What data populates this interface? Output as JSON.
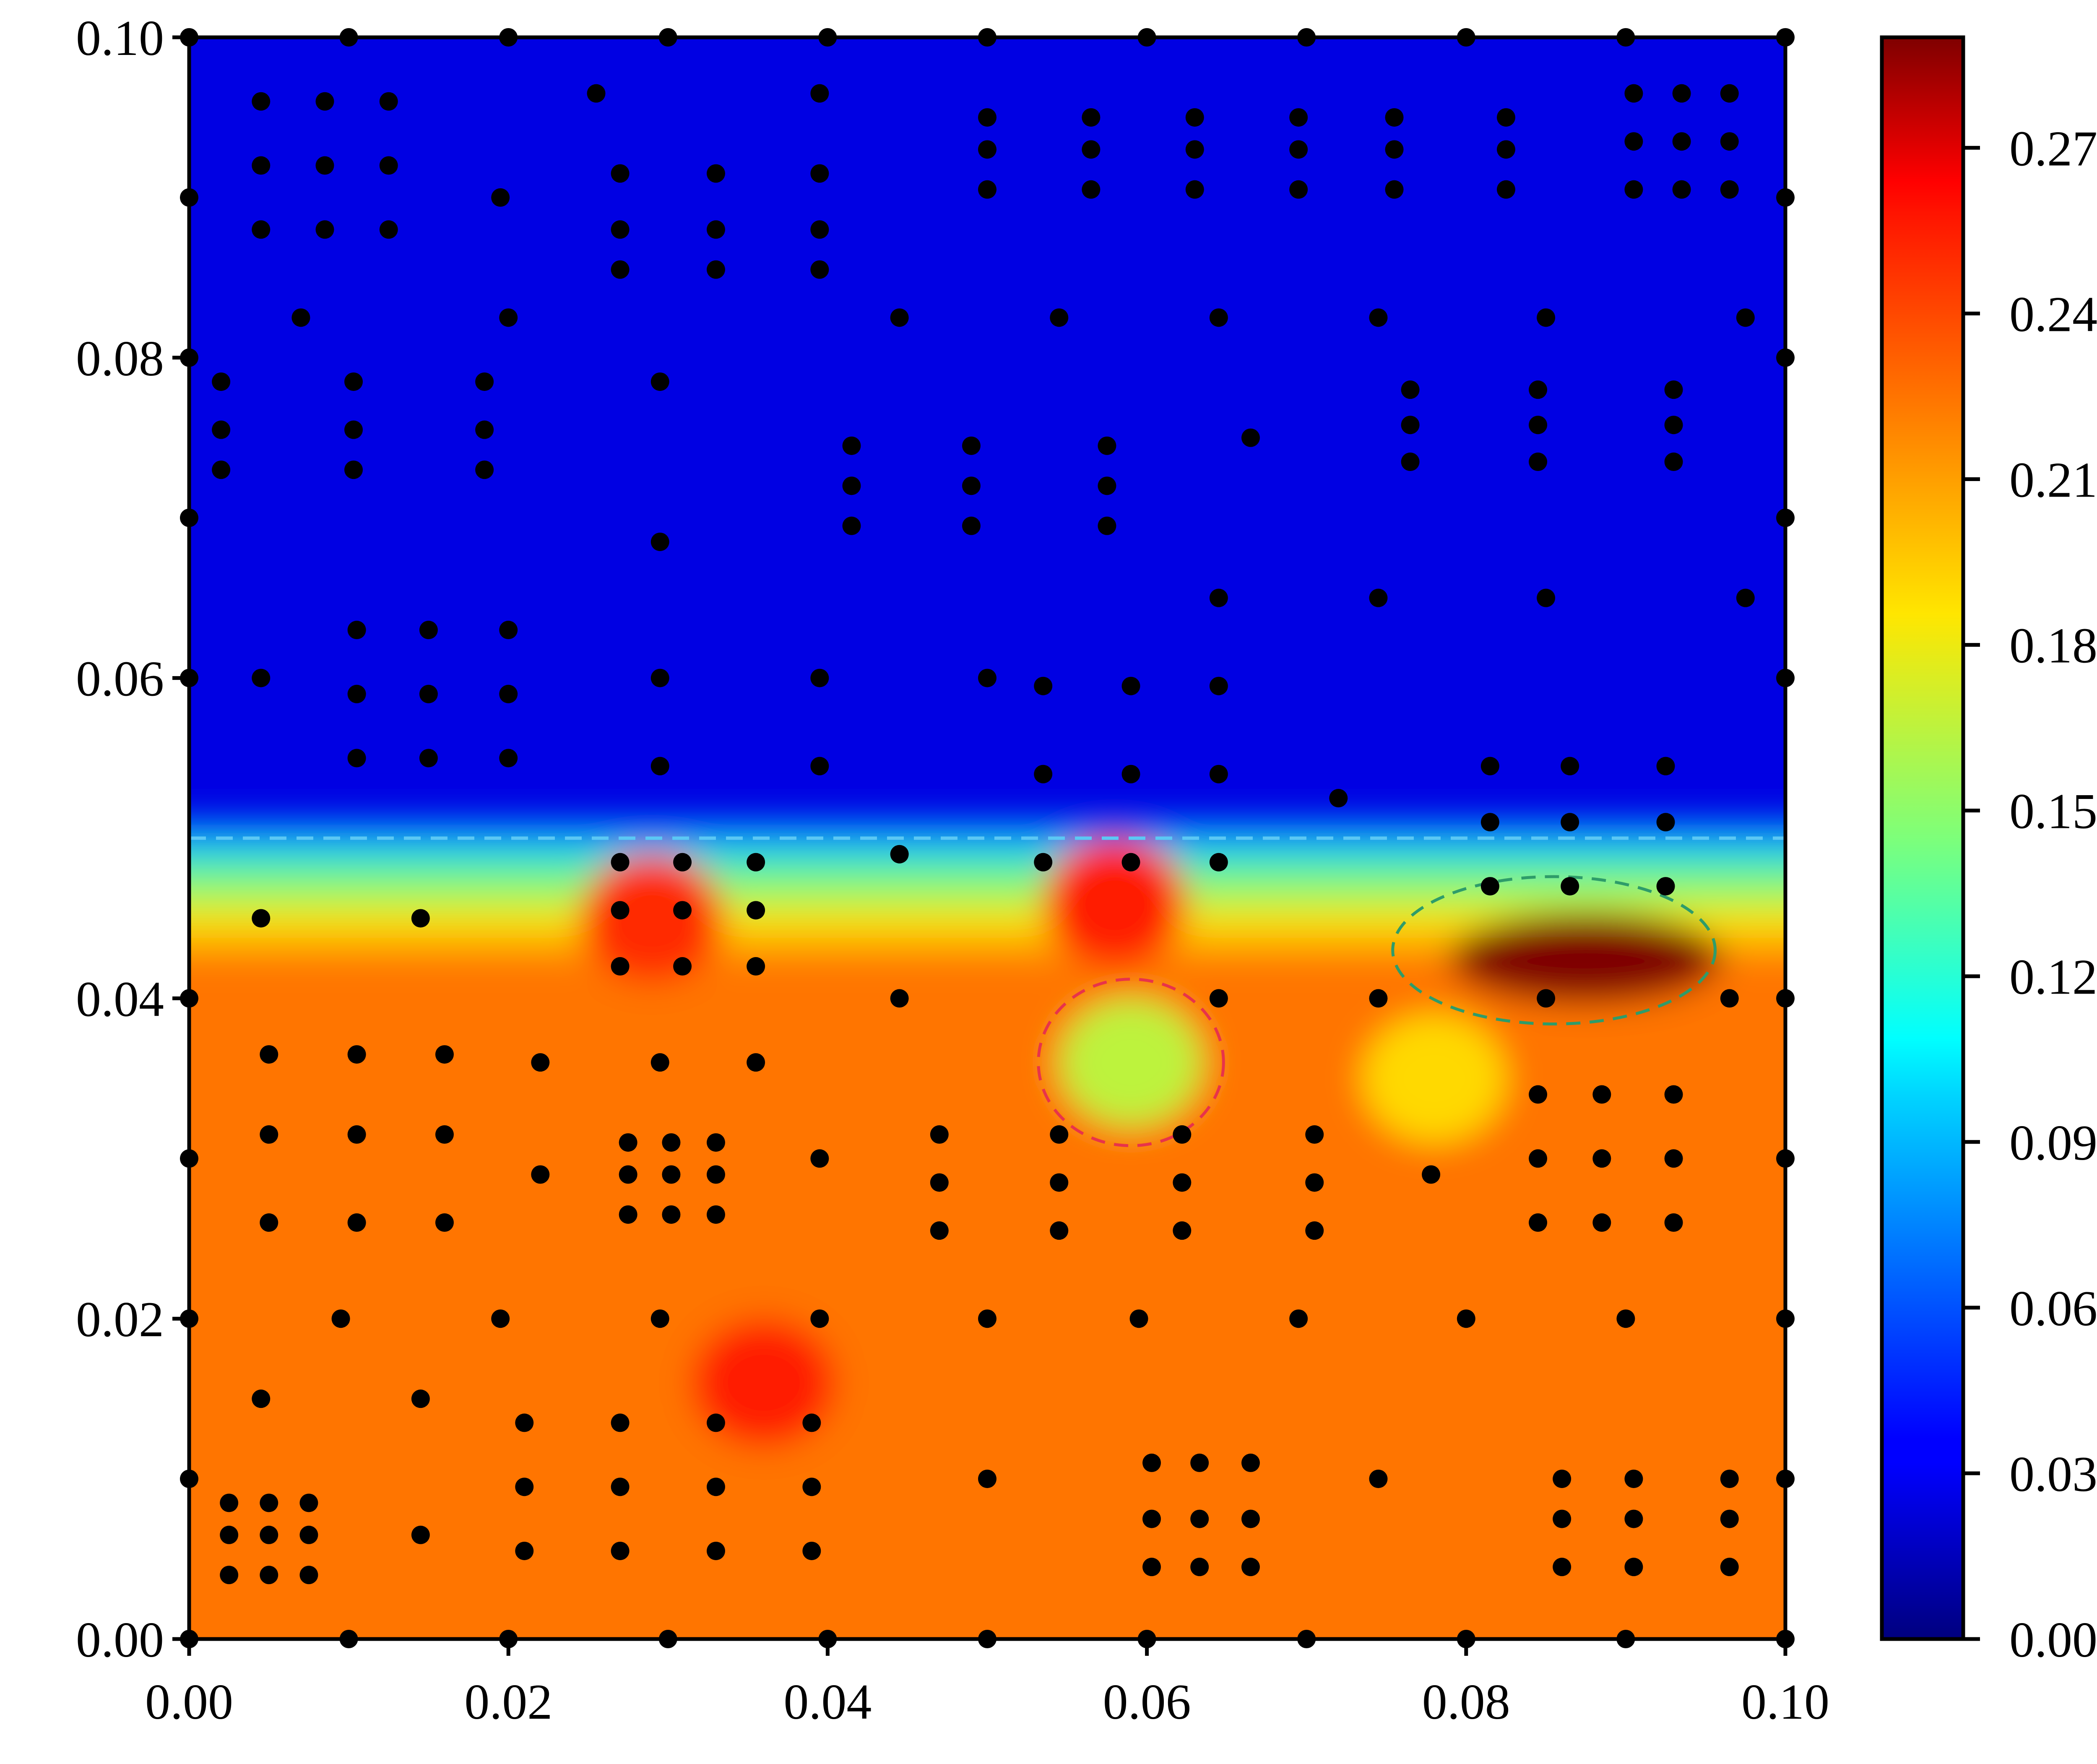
{
  "chart_data": {
    "type": "heatmap",
    "title": "",
    "xlabel": "",
    "ylabel": "",
    "xlim": [
      0.0,
      0.1
    ],
    "ylim": [
      0.0,
      0.1
    ],
    "x_ticks": [
      "0.00",
      "0.02",
      "0.04",
      "0.06",
      "0.08",
      "0.10"
    ],
    "y_ticks": [
      "0.00",
      "0.02",
      "0.04",
      "0.06",
      "0.08",
      "0.10"
    ],
    "colormap": "jet",
    "colorbar": {
      "range": [
        0.0,
        0.29
      ],
      "ticks": [
        "0.00",
        "0.03",
        "0.06",
        "0.09",
        "0.12",
        "0.15",
        "0.18",
        "0.21",
        "0.24",
        "0.27"
      ]
    },
    "interface_line": {
      "y": 0.05,
      "style": "dashed",
      "color": "#5bc8f5"
    },
    "annotations": [
      {
        "shape": "dashed-ellipse",
        "color": "#e8334a",
        "cx": 0.059,
        "cy": 0.036,
        "rx": 0.0058,
        "ry": 0.0052
      },
      {
        "shape": "dashed-ellipse",
        "color": "#2e9c6a",
        "cx": 0.0855,
        "cy": 0.043,
        "rx": 0.0101,
        "ry": 0.0046
      }
    ],
    "field_features": [
      {
        "kind": "upper-region",
        "y_from": 0.05,
        "y_to": 0.1,
        "value": 0.025
      },
      {
        "kind": "lower-region",
        "y_from": 0.0,
        "y_to": 0.042,
        "value": 0.225
      },
      {
        "kind": "hotspot",
        "x": 0.0875,
        "y": 0.0425,
        "value": 0.29
      },
      {
        "kind": "hotspot",
        "x": 0.058,
        "y": 0.046,
        "value": 0.255
      },
      {
        "kind": "hotspot",
        "x": 0.029,
        "y": 0.045,
        "value": 0.25
      },
      {
        "kind": "hotspot",
        "x": 0.036,
        "y": 0.016,
        "value": 0.255
      },
      {
        "kind": "coolspot",
        "x": 0.059,
        "y": 0.036,
        "value": 0.165
      },
      {
        "kind": "coolspot",
        "x": 0.078,
        "y": 0.035,
        "value": 0.19
      }
    ],
    "sample_points": [
      [
        0,
        0
      ],
      [
        0.01,
        0
      ],
      [
        0.02,
        0
      ],
      [
        0.03,
        0
      ],
      [
        0.04,
        0
      ],
      [
        0.05,
        0
      ],
      [
        0.06,
        0
      ],
      [
        0.07,
        0
      ],
      [
        0.08,
        0
      ],
      [
        0.09,
        0
      ],
      [
        0.1,
        0
      ],
      [
        0,
        0.1
      ],
      [
        0.01,
        0.1
      ],
      [
        0.02,
        0.1
      ],
      [
        0.03,
        0.1
      ],
      [
        0.04,
        0.1
      ],
      [
        0.05,
        0.1
      ],
      [
        0.06,
        0.1
      ],
      [
        0.07,
        0.1
      ],
      [
        0.08,
        0.1
      ],
      [
        0.09,
        0.1
      ],
      [
        0.1,
        0.1
      ],
      [
        0,
        0.01
      ],
      [
        0,
        0.02
      ],
      [
        0,
        0.03
      ],
      [
        0,
        0.04
      ],
      [
        0,
        0.06
      ],
      [
        0,
        0.07
      ],
      [
        0,
        0.08
      ],
      [
        0,
        0.09
      ],
      [
        0.1,
        0.01
      ],
      [
        0.1,
        0.02
      ],
      [
        0.1,
        0.03
      ],
      [
        0.1,
        0.04
      ],
      [
        0.1,
        0.06
      ],
      [
        0.1,
        0.07
      ],
      [
        0.1,
        0.08
      ],
      [
        0.1,
        0.09
      ],
      [
        0.0045,
        0.096
      ],
      [
        0.0085,
        0.096
      ],
      [
        0.0125,
        0.096
      ],
      [
        0.0045,
        0.092
      ],
      [
        0.0085,
        0.092
      ],
      [
        0.0125,
        0.092
      ],
      [
        0.0045,
        0.088
      ],
      [
        0.0085,
        0.088
      ],
      [
        0.0125,
        0.088
      ],
      [
        0.0255,
        0.0965
      ],
      [
        0.0395,
        0.0965
      ],
      [
        0.0195,
        0.09
      ],
      [
        0.007,
        0.0825
      ],
      [
        0.027,
        0.0915
      ],
      [
        0.027,
        0.088
      ],
      [
        0.027,
        0.0855
      ],
      [
        0.033,
        0.0915
      ],
      [
        0.033,
        0.088
      ],
      [
        0.033,
        0.0855
      ],
      [
        0.0395,
        0.0915
      ],
      [
        0.0395,
        0.088
      ],
      [
        0.0395,
        0.0855
      ],
      [
        0.05,
        0.095
      ],
      [
        0.05,
        0.093
      ],
      [
        0.05,
        0.0905
      ],
      [
        0.0565,
        0.095
      ],
      [
        0.0565,
        0.093
      ],
      [
        0.0565,
        0.0905
      ],
      [
        0.063,
        0.095
      ],
      [
        0.063,
        0.093
      ],
      [
        0.063,
        0.0905
      ],
      [
        0.0695,
        0.095
      ],
      [
        0.0695,
        0.093
      ],
      [
        0.0695,
        0.0905
      ],
      [
        0.0755,
        0.095
      ],
      [
        0.0755,
        0.093
      ],
      [
        0.0755,
        0.0905
      ],
      [
        0.0825,
        0.095
      ],
      [
        0.0825,
        0.093
      ],
      [
        0.0825,
        0.0905
      ],
      [
        0.0905,
        0.0965
      ],
      [
        0.0935,
        0.0965
      ],
      [
        0.0965,
        0.0965
      ],
      [
        0.0905,
        0.0935
      ],
      [
        0.0935,
        0.0935
      ],
      [
        0.0965,
        0.0935
      ],
      [
        0.0905,
        0.0905
      ],
      [
        0.0935,
        0.0905
      ],
      [
        0.0965,
        0.0905
      ],
      [
        0.02,
        0.0825
      ],
      [
        0.0445,
        0.0825
      ],
      [
        0.0545,
        0.0825
      ],
      [
        0.0645,
        0.0825
      ],
      [
        0.0745,
        0.0825
      ],
      [
        0.085,
        0.0825
      ],
      [
        0.0975,
        0.0825
      ],
      [
        0.002,
        0.0785
      ],
      [
        0.002,
        0.0755
      ],
      [
        0.002,
        0.073
      ],
      [
        0.0103,
        0.0785
      ],
      [
        0.0103,
        0.0755
      ],
      [
        0.0103,
        0.073
      ],
      [
        0.0185,
        0.0785
      ],
      [
        0.0185,
        0.0755
      ],
      [
        0.0185,
        0.073
      ],
      [
        0.0295,
        0.0785
      ],
      [
        0.0295,
        0.0685
      ],
      [
        0.0415,
        0.0745
      ],
      [
        0.0415,
        0.072
      ],
      [
        0.0415,
        0.0695
      ],
      [
        0.049,
        0.0745
      ],
      [
        0.049,
        0.072
      ],
      [
        0.049,
        0.0695
      ],
      [
        0.0575,
        0.0745
      ],
      [
        0.0575,
        0.072
      ],
      [
        0.0575,
        0.0695
      ],
      [
        0.0665,
        0.075
      ],
      [
        0.0765,
        0.078
      ],
      [
        0.0765,
        0.0758
      ],
      [
        0.0765,
        0.0735
      ],
      [
        0.0845,
        0.078
      ],
      [
        0.0845,
        0.0758
      ],
      [
        0.0845,
        0.0735
      ],
      [
        0.093,
        0.078
      ],
      [
        0.093,
        0.0758
      ],
      [
        0.093,
        0.0735
      ],
      [
        0.0645,
        0.065
      ],
      [
        0.0745,
        0.065
      ],
      [
        0.085,
        0.065
      ],
      [
        0.0975,
        0.065
      ],
      [
        0.0105,
        0.063
      ],
      [
        0.0105,
        0.059
      ],
      [
        0.0105,
        0.055
      ],
      [
        0.015,
        0.063
      ],
      [
        0.015,
        0.059
      ],
      [
        0.015,
        0.055
      ],
      [
        0.02,
        0.063
      ],
      [
        0.02,
        0.059
      ],
      [
        0.02,
        0.055
      ],
      [
        0.0045,
        0.06
      ],
      [
        0.0295,
        0.06
      ],
      [
        0.0295,
        0.0545
      ],
      [
        0.0395,
        0.06
      ],
      [
        0.0395,
        0.0545
      ],
      [
        0.05,
        0.06
      ],
      [
        0.0535,
        0.0595
      ],
      [
        0.0535,
        0.054
      ],
      [
        0.059,
        0.0595
      ],
      [
        0.059,
        0.054
      ],
      [
        0.0645,
        0.0595
      ],
      [
        0.0645,
        0.054
      ],
      [
        0.072,
        0.0525
      ],
      [
        0.0815,
        0.0545
      ],
      [
        0.0815,
        0.051
      ],
      [
        0.0865,
        0.0545
      ],
      [
        0.0865,
        0.051
      ],
      [
        0.0925,
        0.0545
      ],
      [
        0.0925,
        0.051
      ],
      [
        0.0445,
        0.049
      ],
      [
        0.0535,
        0.0485
      ],
      [
        0.059,
        0.0485
      ],
      [
        0.0645,
        0.0485
      ],
      [
        0.027,
        0.0485
      ],
      [
        0.027,
        0.0455
      ],
      [
        0.027,
        0.042
      ],
      [
        0.0309,
        0.0485
      ],
      [
        0.0309,
        0.0455
      ],
      [
        0.0309,
        0.042
      ],
      [
        0.0355,
        0.0485
      ],
      [
        0.0355,
        0.0455
      ],
      [
        0.0355,
        0.042
      ],
      [
        0.0045,
        0.045
      ],
      [
        0.0145,
        0.045
      ],
      [
        0.0815,
        0.047
      ],
      [
        0.0865,
        0.047
      ],
      [
        0.0925,
        0.047
      ],
      [
        0.0445,
        0.04
      ],
      [
        0.0645,
        0.04
      ],
      [
        0.0745,
        0.04
      ],
      [
        0.085,
        0.04
      ],
      [
        0.0965,
        0.04
      ],
      [
        0.005,
        0.0365
      ],
      [
        0.0105,
        0.0365
      ],
      [
        0.016,
        0.0365
      ],
      [
        0.022,
        0.036
      ],
      [
        0.0295,
        0.036
      ],
      [
        0.0355,
        0.036
      ],
      [
        0.005,
        0.0315
      ],
      [
        0.0105,
        0.0315
      ],
      [
        0.016,
        0.0315
      ],
      [
        0.005,
        0.026
      ],
      [
        0.0105,
        0.026
      ],
      [
        0.016,
        0.026
      ],
      [
        0.022,
        0.029
      ],
      [
        0.0275,
        0.031
      ],
      [
        0.0275,
        0.029
      ],
      [
        0.0275,
        0.0265
      ],
      [
        0.0302,
        0.031
      ],
      [
        0.0302,
        0.029
      ],
      [
        0.0302,
        0.0265
      ],
      [
        0.033,
        0.031
      ],
      [
        0.033,
        0.029
      ],
      [
        0.033,
        0.0265
      ],
      [
        0.0395,
        0.03
      ],
      [
        0.047,
        0.0315
      ],
      [
        0.047,
        0.0285
      ],
      [
        0.047,
        0.0255
      ],
      [
        0.0545,
        0.0315
      ],
      [
        0.0545,
        0.0285
      ],
      [
        0.0545,
        0.0255
      ],
      [
        0.0622,
        0.0315
      ],
      [
        0.0622,
        0.0285
      ],
      [
        0.0622,
        0.0255
      ],
      [
        0.0705,
        0.0315
      ],
      [
        0.0705,
        0.0285
      ],
      [
        0.0705,
        0.0255
      ],
      [
        0.0778,
        0.029
      ],
      [
        0.0845,
        0.034
      ],
      [
        0.0845,
        0.03
      ],
      [
        0.0845,
        0.026
      ],
      [
        0.0885,
        0.034
      ],
      [
        0.0885,
        0.03
      ],
      [
        0.0885,
        0.026
      ],
      [
        0.093,
        0.034
      ],
      [
        0.093,
        0.03
      ],
      [
        0.093,
        0.026
      ],
      [
        0.0095,
        0.02
      ],
      [
        0.0195,
        0.02
      ],
      [
        0.0295,
        0.02
      ],
      [
        0.0395,
        0.02
      ],
      [
        0.05,
        0.02
      ],
      [
        0.0595,
        0.02
      ],
      [
        0.0695,
        0.02
      ],
      [
        0.08,
        0.02
      ],
      [
        0.09,
        0.02
      ],
      [
        0.0045,
        0.015
      ],
      [
        0.0145,
        0.015
      ],
      [
        0.021,
        0.0135
      ],
      [
        0.027,
        0.0135
      ],
      [
        0.033,
        0.0135
      ],
      [
        0.039,
        0.0135
      ],
      [
        0.021,
        0.0095
      ],
      [
        0.027,
        0.0095
      ],
      [
        0.033,
        0.0095
      ],
      [
        0.039,
        0.0095
      ],
      [
        0.021,
        0.0055
      ],
      [
        0.027,
        0.0055
      ],
      [
        0.033,
        0.0055
      ],
      [
        0.039,
        0.0055
      ],
      [
        0.0025,
        0.0085
      ],
      [
        0.005,
        0.0085
      ],
      [
        0.0075,
        0.0085
      ],
      [
        0.0025,
        0.0065
      ],
      [
        0.005,
        0.0065
      ],
      [
        0.0075,
        0.0065
      ],
      [
        0.0025,
        0.004
      ],
      [
        0.005,
        0.004
      ],
      [
        0.0075,
        0.004
      ],
      [
        0.0145,
        0.0065
      ],
      [
        0.05,
        0.01
      ],
      [
        0.0603,
        0.011
      ],
      [
        0.0603,
        0.0075
      ],
      [
        0.0603,
        0.0045
      ],
      [
        0.0633,
        0.011
      ],
      [
        0.0633,
        0.0075
      ],
      [
        0.0633,
        0.0045
      ],
      [
        0.0665,
        0.011
      ],
      [
        0.0665,
        0.0075
      ],
      [
        0.0665,
        0.0045
      ],
      [
        0.0745,
        0.01
      ],
      [
        0.086,
        0.01
      ],
      [
        0.086,
        0.0075
      ],
      [
        0.086,
        0.0045
      ],
      [
        0.0905,
        0.01
      ],
      [
        0.0905,
        0.0075
      ],
      [
        0.0905,
        0.0045
      ],
      [
        0.0965,
        0.01
      ],
      [
        0.0965,
        0.0075
      ],
      [
        0.0965,
        0.0045
      ]
    ]
  }
}
